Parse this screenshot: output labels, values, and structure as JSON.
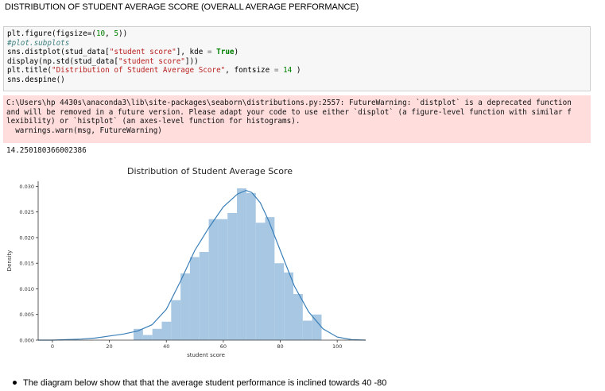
{
  "heading": "DISTRIBUTION OF STUDENT AVERAGE SCORE (OVERALL AVERAGE PERFORMANCE)",
  "code_lines": [
    [
      {
        "t": "plt.figure(figsize=(",
        "c": ""
      },
      {
        "t": "10",
        "c": "num"
      },
      {
        "t": ", ",
        "c": ""
      },
      {
        "t": "5",
        "c": "num"
      },
      {
        "t": "))",
        "c": ""
      }
    ],
    [
      {
        "t": "#plot.subplots",
        "c": "cm"
      }
    ],
    [
      {
        "t": "sns.distplot(stud_data[",
        "c": ""
      },
      {
        "t": "\"student score\"",
        "c": "str"
      },
      {
        "t": "], kde ",
        "c": ""
      },
      {
        "t": "=",
        "c": "op"
      },
      {
        "t": " ",
        "c": ""
      },
      {
        "t": "True",
        "c": "kw"
      },
      {
        "t": ")",
        "c": ""
      }
    ],
    [
      {
        "t": "display(np.std(stud_data[",
        "c": ""
      },
      {
        "t": "\"student score\"",
        "c": "str"
      },
      {
        "t": "]))",
        "c": ""
      }
    ],
    [
      {
        "t": "plt.title(",
        "c": ""
      },
      {
        "t": "\"Distribution of Student Average Score\"",
        "c": "str"
      },
      {
        "t": ", fontsize ",
        "c": ""
      },
      {
        "t": "=",
        "c": "op"
      },
      {
        "t": " ",
        "c": ""
      },
      {
        "t": "14",
        "c": "num"
      },
      {
        "t": " )",
        "c": ""
      }
    ],
    [
      {
        "t": "sns.despine()",
        "c": ""
      }
    ]
  ],
  "stderr_lines": [
    "C:\\Users\\hp 4430s\\anaconda3\\lib\\site-packages\\seaborn\\distributions.py:2557: FutureWarning: `distplot` is a deprecated function",
    "and will be removed in a future version. Please adapt your code to use either `displot` (a figure-level function with similar f",
    "lexibility) or `histplot` (an axes-level function for histograms).",
    "  warnings.warn(msg, FutureWarning)"
  ],
  "stdout": "14.250180366002386",
  "bullet": "The diagram below show that that the average student performance is inclined towards 40 -80",
  "colors": {
    "bar": "#a7c7e2",
    "kde": "#3a7fb8",
    "code_bg": "#f7f7f7",
    "stderr_bg": "#ffdddd"
  },
  "chart_data": {
    "type": "bar",
    "title": "Distribution of Student Average Score",
    "xlabel": "student score",
    "ylabel": "Density",
    "xlim": [
      -5,
      110
    ],
    "ylim": [
      0,
      0.031
    ],
    "xticks": [
      0,
      20,
      40,
      60,
      80,
      100
    ],
    "yticks": [
      0.0,
      0.005,
      0.01,
      0.015,
      0.02,
      0.025,
      0.03
    ],
    "ytick_labels": [
      "0.000",
      "0.005",
      "0.010",
      "0.015",
      "0.020",
      "0.025",
      "0.030"
    ],
    "bin_width": 3.3,
    "bins": [
      {
        "x0": 28.5,
        "v": 0.0022
      },
      {
        "x0": 31.8,
        "v": 0.001
      },
      {
        "x0": 35.1,
        "v": 0.0022
      },
      {
        "x0": 38.4,
        "v": 0.0036
      },
      {
        "x0": 41.7,
        "v": 0.0078
      },
      {
        "x0": 45.0,
        "v": 0.013
      },
      {
        "x0": 48.3,
        "v": 0.0162
      },
      {
        "x0": 51.6,
        "v": 0.0172
      },
      {
        "x0": 54.9,
        "v": 0.0236
      },
      {
        "x0": 58.2,
        "v": 0.0236
      },
      {
        "x0": 61.5,
        "v": 0.0248
      },
      {
        "x0": 64.8,
        "v": 0.0296
      },
      {
        "x0": 68.1,
        "v": 0.0287
      },
      {
        "x0": 71.4,
        "v": 0.0229
      },
      {
        "x0": 74.7,
        "v": 0.024
      },
      {
        "x0": 78.0,
        "v": 0.015
      },
      {
        "x0": 81.3,
        "v": 0.0132
      },
      {
        "x0": 84.6,
        "v": 0.009
      },
      {
        "x0": 87.9,
        "v": 0.0038
      },
      {
        "x0": 91.2,
        "v": 0.005
      }
    ],
    "kde": {
      "x": [
        -5,
        0,
        5,
        10,
        15,
        20,
        25,
        30,
        35,
        40,
        45,
        50,
        55,
        60,
        65,
        68,
        70,
        73,
        76,
        80,
        85,
        90,
        95,
        100,
        105,
        110
      ],
      "y": [
        0.0,
        0.0,
        0.0001,
        0.0002,
        0.0004,
        0.0008,
        0.0012,
        0.0018,
        0.003,
        0.006,
        0.0115,
        0.0175,
        0.022,
        0.026,
        0.0285,
        0.0292,
        0.0288,
        0.0268,
        0.0232,
        0.0175,
        0.0105,
        0.0055,
        0.0022,
        0.0006,
        0.0001,
        0.0
      ]
    }
  }
}
